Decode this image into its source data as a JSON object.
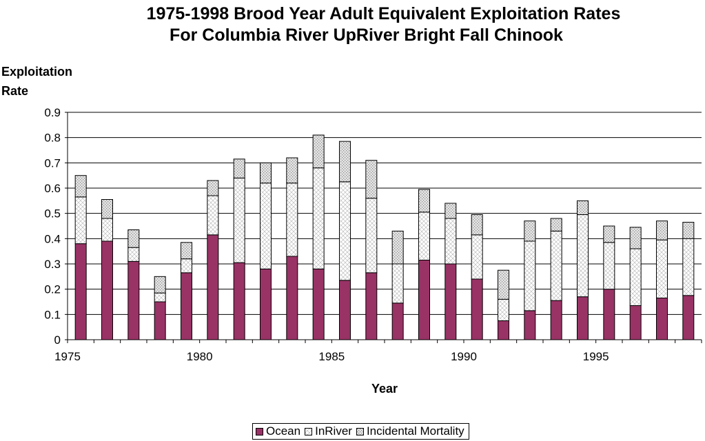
{
  "chart_data": {
    "type": "bar",
    "stacked": true,
    "title_line1": "1975-1998 Brood Year Adult Equivalent Exploitation Rates",
    "title_line2": "For Columbia River UpRiver Bright Fall Chinook",
    "ylabel_line1": "Exploitation",
    "ylabel_line2": "Rate",
    "xlabel": "Year",
    "ylim": [
      0,
      0.9
    ],
    "yticks": [
      "0",
      "0.1",
      "0.2",
      "0.3",
      "0.4",
      "0.5",
      "0.6",
      "0.7",
      "0.8",
      "0.9"
    ],
    "xtick_labels": [
      "1975",
      "1980",
      "1985",
      "1990",
      "1995"
    ],
    "categories": [
      "1975",
      "1976",
      "1977",
      "1978",
      "1979",
      "1980",
      "1981",
      "1982",
      "1983",
      "1984",
      "1985",
      "1986",
      "1987",
      "1988",
      "1989",
      "1990",
      "1991",
      "1992",
      "1993",
      "1994",
      "1995",
      "1996",
      "1997",
      "1998"
    ],
    "grid": true,
    "legend_position": "bottom",
    "series": [
      {
        "name": "Ocean",
        "color": "#993366",
        "values": [
          0.38,
          0.39,
          0.31,
          0.15,
          0.265,
          0.415,
          0.305,
          0.28,
          0.33,
          0.28,
          0.235,
          0.265,
          0.145,
          0.315,
          0.3,
          0.24,
          0.075,
          0.115,
          0.155,
          0.17,
          0.2,
          0.135,
          0.165,
          0.175
        ]
      },
      {
        "name": "InRiver",
        "color": "#ffffff",
        "values": [
          0.185,
          0.09,
          0.055,
          0.035,
          0.055,
          0.155,
          0.335,
          0.34,
          0.29,
          0.4,
          0.39,
          0.295,
          0.155,
          0.19,
          0.18,
          0.175,
          0.085,
          0.275,
          0.275,
          0.325,
          0.185,
          0.225,
          0.23,
          0.225
        ]
      },
      {
        "name": "Incidental Mortality",
        "color": "#d9d9d9",
        "values": [
          0.085,
          0.075,
          0.07,
          0.065,
          0.065,
          0.06,
          0.075,
          0.08,
          0.1,
          0.13,
          0.16,
          0.15,
          0.13,
          0.09,
          0.06,
          0.08,
          0.115,
          0.08,
          0.05,
          0.055,
          0.065,
          0.085,
          0.075,
          0.065
        ]
      }
    ]
  }
}
